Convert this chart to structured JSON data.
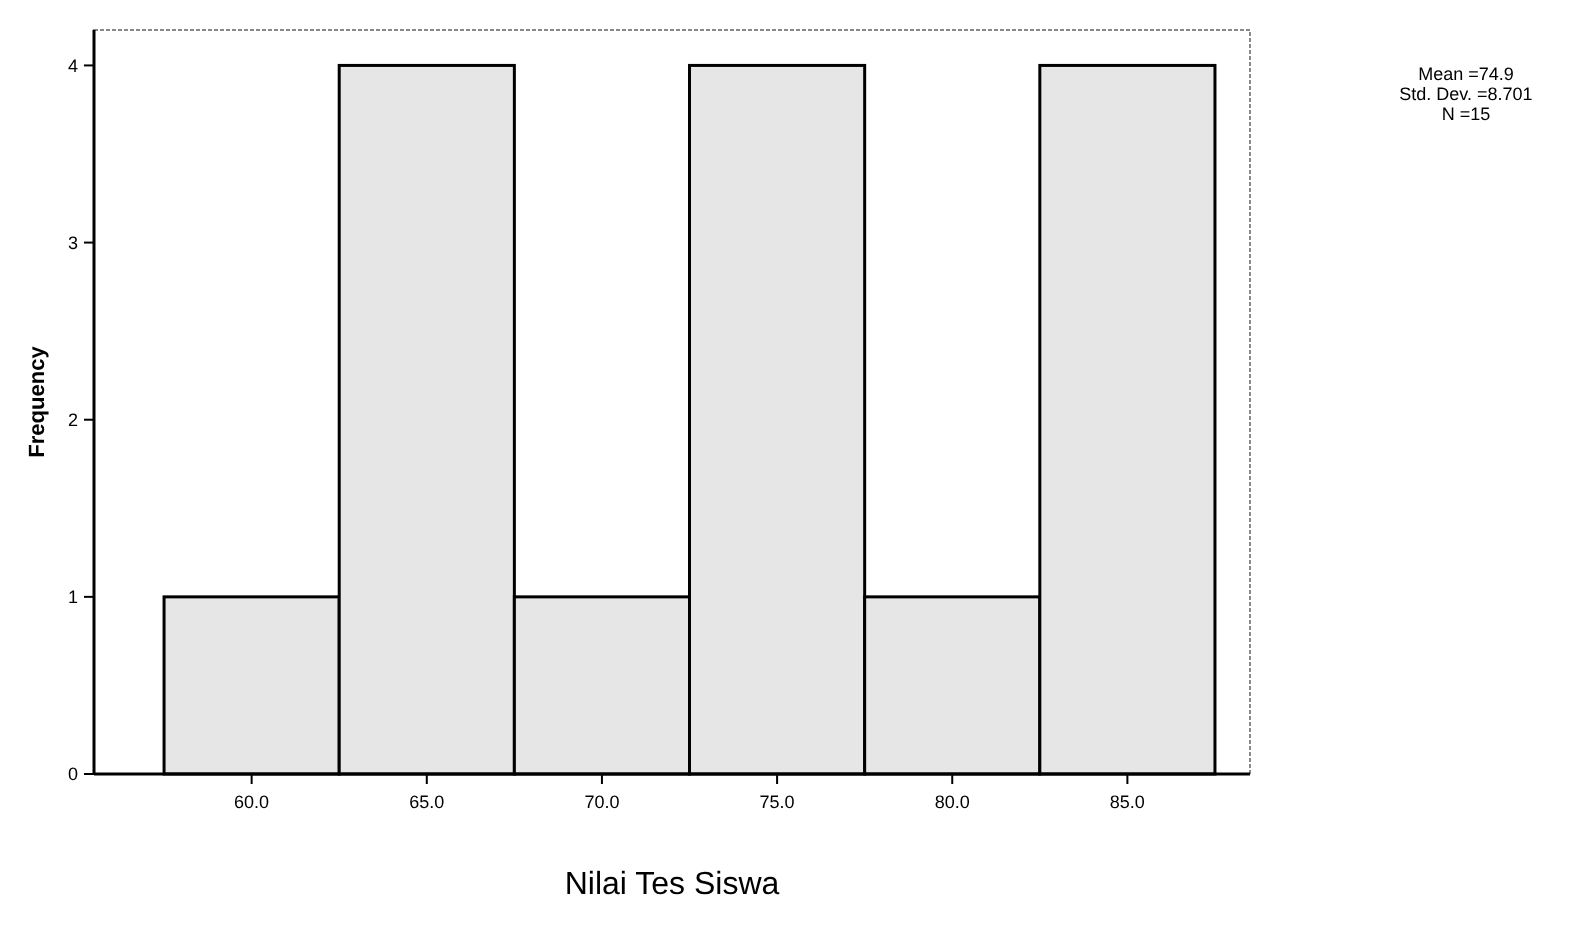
{
  "chart_data": {
    "type": "histogram",
    "xlabel": "Nilai Tes Siswa",
    "ylabel": "Frequency",
    "bins": [
      57.5,
      62.5,
      67.5,
      72.5,
      77.5,
      82.5,
      87.5
    ],
    "values": [
      1,
      4,
      1,
      4,
      1,
      4
    ],
    "color": "#e6e6e6",
    "xlim": [
      55.5,
      88.5
    ],
    "ylim": [
      0,
      4.2
    ],
    "xticks": [
      {
        "value": 60,
        "label": "60.0"
      },
      {
        "value": 65,
        "label": "65.0"
      },
      {
        "value": 70,
        "label": "70.0"
      },
      {
        "value": 75,
        "label": "75.0"
      },
      {
        "value": 80,
        "label": "80.0"
      },
      {
        "value": 85,
        "label": "85.0"
      }
    ],
    "yticks": [
      0,
      1,
      2,
      3,
      4
    ],
    "grid": false,
    "annotations": [
      "Mean =74.9",
      "Std. Dev. =8.701",
      "N =15"
    ]
  }
}
